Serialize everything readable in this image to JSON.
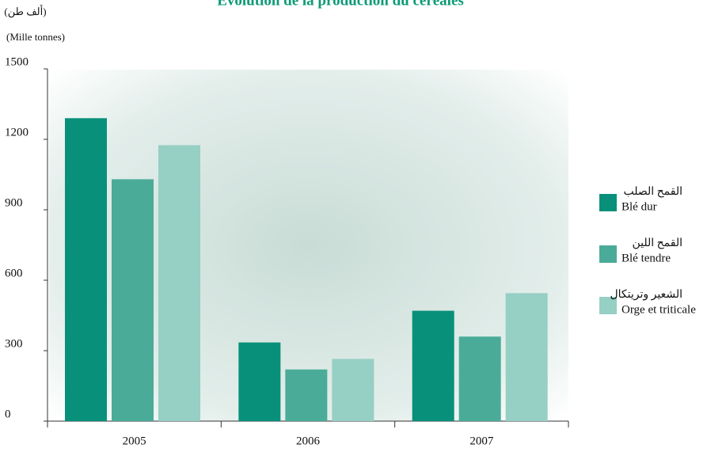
{
  "chart_data": {
    "type": "bar",
    "title": "Evolution de la production du céréales",
    "y_label_ar": "(ألف طن)",
    "y_label": "(Mille tonnes)",
    "categories": [
      "2005",
      "2006",
      "2007"
    ],
    "series": [
      {
        "name": "Blé dur",
        "name_ar": "القمح الصلب",
        "color": "#08907a",
        "values": [
          1290,
          335,
          470
        ]
      },
      {
        "name": "Blé tendre",
        "name_ar": "القمح اللين",
        "color": "#4aab99",
        "values": [
          1030,
          220,
          360
        ]
      },
      {
        "name": "Orge et triticale",
        "name_ar": "الشعير وتريتكال",
        "color": "#96cfc4",
        "values": [
          1175,
          265,
          545
        ]
      }
    ],
    "ylim": [
      0,
      1500
    ],
    "yticks": [
      0,
      300,
      600,
      900,
      1200,
      1500
    ],
    "legend": "right"
  }
}
